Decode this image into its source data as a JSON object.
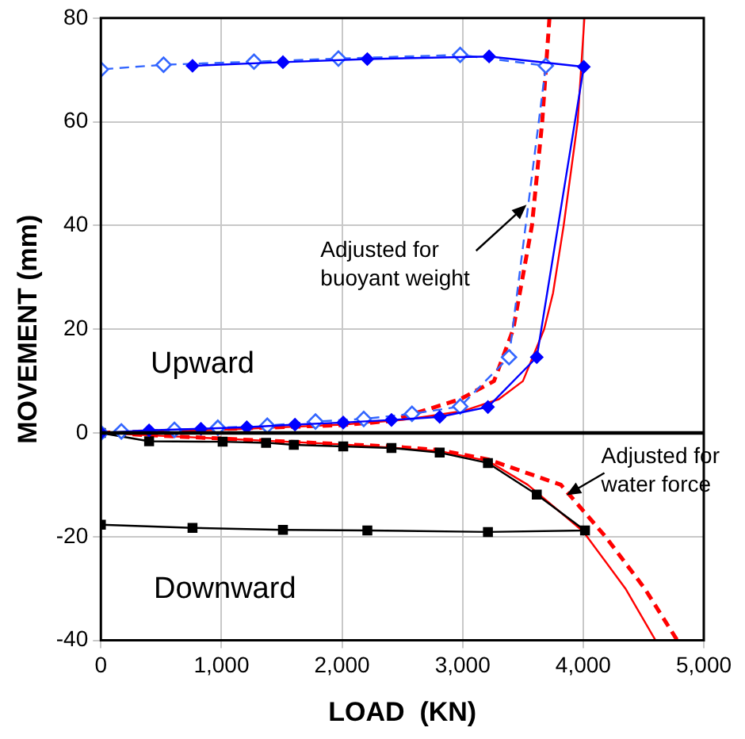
{
  "chart_data": {
    "type": "line",
    "xlabel": "LOAD  (KN)",
    "ylabel": "MOVEMENT (mm)",
    "xlim": [
      0,
      5000
    ],
    "xticks": [
      0,
      {
        "value": 1000,
        "label": "1,000"
      },
      {
        "value": 2000,
        "label": "2,000"
      },
      {
        "value": 3000,
        "label": "3,000"
      },
      {
        "value": 4000,
        "label": "4,000"
      },
      {
        "value": 5000,
        "label": "5,000"
      }
    ],
    "ylim": [
      -40,
      80
    ],
    "yticks": [
      -40,
      -20,
      0,
      20,
      40,
      60,
      80
    ],
    "grid": true,
    "legend": false,
    "ref_lines": [
      {
        "axis": "y",
        "value": 0,
        "color": "#000000"
      }
    ],
    "series": [
      {
        "color": "#0000ff",
        "marker": "diamond",
        "line_style": "solid",
        "x": [
          0,
          400,
          830,
          1210,
          1610,
          2010,
          2410,
          2810,
          3210,
          3615,
          4005,
          3220,
          2210,
          1510,
          760
        ],
        "values": [
          0,
          0.5,
          0.8,
          1.1,
          1.6,
          2.0,
          2.5,
          3.1,
          5.0,
          14.6,
          70.6,
          72.6,
          72.1,
          71.5,
          70.8
        ]
      },
      {
        "color": "#3366ff",
        "marker": "diamond_open",
        "line_style": "dashed",
        "x": [
          0,
          170,
          610,
          970,
          1380,
          1780,
          2180,
          2580,
          2980,
          3385,
          3690,
          2980,
          1970,
          1270,
          520,
          0
        ],
        "values": [
          0,
          0.3,
          0.6,
          1.0,
          1.4,
          2.2,
          2.7,
          3.7,
          5.1,
          14.6,
          70.8,
          72.9,
          72.2,
          71.6,
          71.0,
          70.1
        ]
      },
      {
        "color": "#ff0000",
        "marker": "none",
        "line_style": "solid",
        "x": [
          0,
          1000,
          2000,
          2500,
          3000,
          3300,
          3500,
          3676,
          3750,
          3838,
          3954,
          4010
        ],
        "values": [
          0,
          0.6,
          1.6,
          2.5,
          4.2,
          6.5,
          10,
          20,
          27,
          40,
          60,
          80
        ]
      },
      {
        "color": "#ff0000",
        "marker": "none",
        "line_style": "dashed",
        "x": [
          0,
          2000,
          2400,
          2980,
          3260,
          3420,
          3575,
          3660,
          3720
        ],
        "values": [
          0,
          1.5,
          2.3,
          6.5,
          10,
          20,
          40,
          60,
          80
        ]
      },
      {
        "color": "#000000",
        "marker": "square",
        "line_style": "solid",
        "x": [
          0,
          400,
          1010,
          1370,
          1600,
          2010,
          2410,
          2810,
          3210,
          3615,
          4015,
          3210,
          2210,
          1510,
          760,
          0
        ],
        "values": [
          0,
          -1.6,
          -1.7,
          -1.9,
          -2.3,
          -2.6,
          -2.9,
          -3.8,
          -5.8,
          -11.9,
          -18.8,
          -19.1,
          -18.8,
          -18.7,
          -18.3,
          -17.7
        ]
      },
      {
        "color": "#ff0000",
        "marker": "none",
        "line_style": "solid",
        "x": [
          0,
          2000,
          2810,
          3210,
          3540,
          4000,
          4350,
          4600
        ],
        "values": [
          0,
          -2.2,
          -3.5,
          -5.4,
          -10,
          -19,
          -30,
          -40
        ]
      },
      {
        "color": "#ff0000",
        "marker": "none",
        "line_style": "dashed",
        "x": [
          0,
          2400,
          2810,
          3210,
          3815,
          4185,
          4510,
          4780
        ],
        "values": [
          0,
          -2.6,
          -3.3,
          -5.1,
          -10,
          -20,
          -30,
          -40
        ]
      }
    ],
    "annotations": [
      {
        "text": "Adjusted for buoyant weight",
        "x": 3530,
        "y": 44
      },
      {
        "text": "Adjusted for water force",
        "x": 3860,
        "y": -12
      },
      "Upward",
      "Downward"
    ]
  }
}
